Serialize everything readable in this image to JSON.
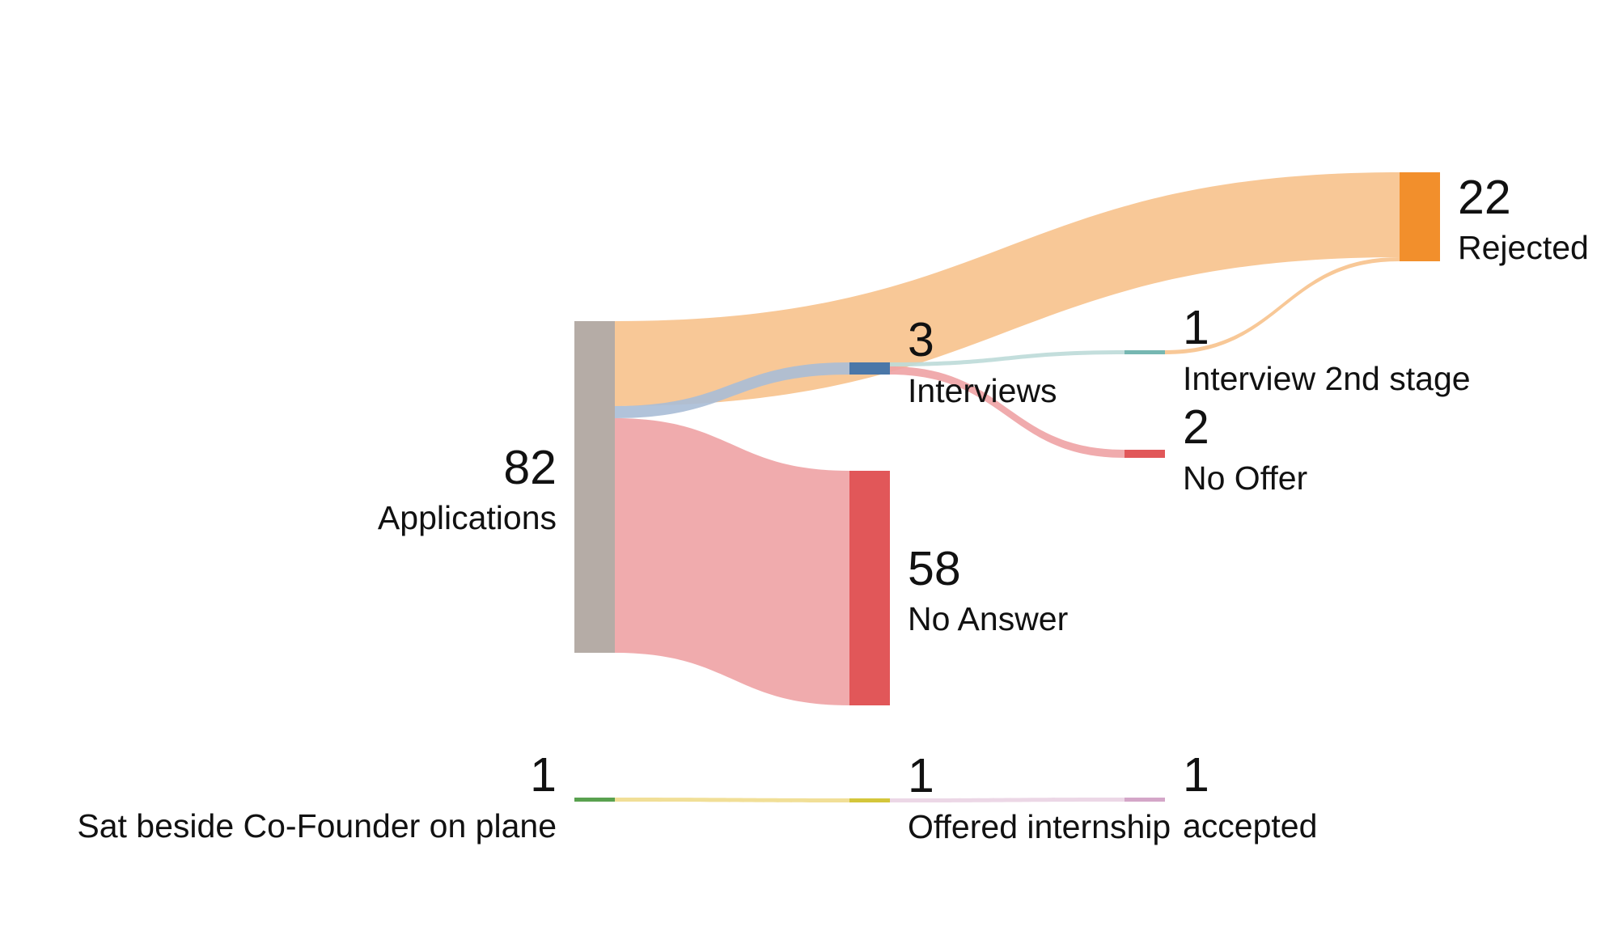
{
  "chart_data": {
    "type": "sankey",
    "title": "",
    "nodes": [
      {
        "id": "applications",
        "label": "Applications",
        "value": 82,
        "color": "#b5aca6"
      },
      {
        "id": "rejected",
        "label": "Rejected",
        "value": 22,
        "color": "#f28f2c"
      },
      {
        "id": "interviews",
        "label": "Interviews",
        "value": 3,
        "color": "#4a77a8"
      },
      {
        "id": "no_answer",
        "label": "No Answer",
        "value": 58,
        "color": "#e15759"
      },
      {
        "id": "interview2",
        "label": "Interview 2nd stage",
        "value": 1,
        "color": "#76b7b2"
      },
      {
        "id": "no_offer",
        "label": "No Offer",
        "value": 2,
        "color": "#e15759"
      },
      {
        "id": "sat_beside",
        "label": "Sat beside Co-Founder on plane",
        "value": 1,
        "color": "#59a14f"
      },
      {
        "id": "offered",
        "label": "Offered internship",
        "value": 1,
        "color": "#d4c63b"
      },
      {
        "id": "accepted",
        "label": "accepted",
        "value": 1,
        "color": "#d4a6c8"
      }
    ],
    "links": [
      {
        "source": "applications",
        "target": "rejected",
        "value": 21,
        "color": "#f7c28c"
      },
      {
        "source": "applications",
        "target": "interviews",
        "value": 3,
        "color": "#a9bdd6"
      },
      {
        "source": "applications",
        "target": "no_answer",
        "value": 58,
        "color": "#eea2a4"
      },
      {
        "source": "interviews",
        "target": "interview2",
        "value": 1,
        "color": "#bcdad8"
      },
      {
        "source": "interviews",
        "target": "no_offer",
        "value": 2,
        "color": "#eea2a4"
      },
      {
        "source": "interview2",
        "target": "rejected",
        "value": 1,
        "color": "#f7c28c"
      },
      {
        "source": "sat_beside",
        "target": "offered",
        "value": 1,
        "color": "#f0dc8c"
      },
      {
        "source": "offered",
        "target": "accepted",
        "value": 1,
        "color": "#ead3e3"
      }
    ]
  }
}
